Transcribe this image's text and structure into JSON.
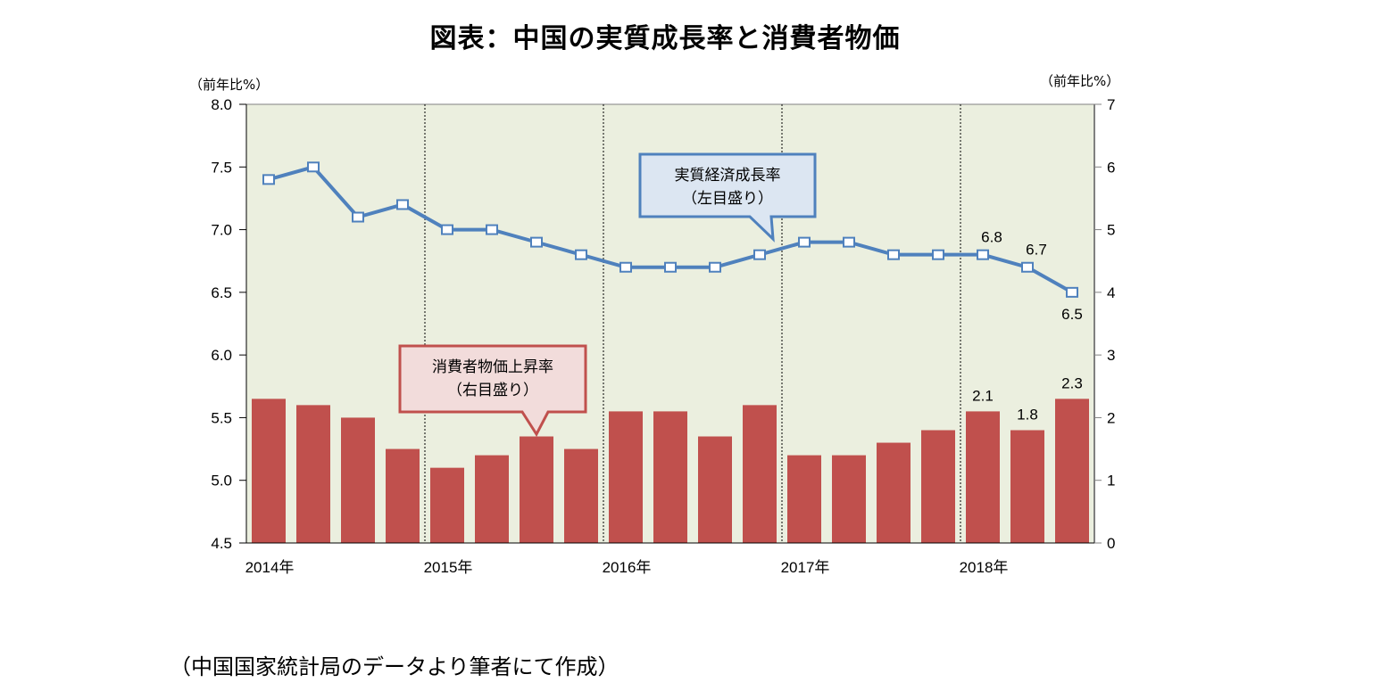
{
  "title": "図表：中国の実質成長率と消費者物価",
  "left_unit": "（前年比%）",
  "right_unit": "（前年比%）",
  "source_note": "（中国国家統計局のデータより筆者にて作成）",
  "callouts": {
    "gdp": {
      "line1": "実質経済成長率",
      "line2": "（左目盛り）"
    },
    "cpi": {
      "line1": "消費者物価上昇率",
      "line2": "（右目盛り）"
    }
  },
  "colors": {
    "plot_bg": "#ebefdf",
    "bar": "#c0504d",
    "line": "#4f81bd",
    "gdp_callout_bg": "#dce6f2",
    "cpi_callout_bg": "#f2dcdb"
  },
  "chart_data": {
    "type": "bar+line",
    "title": "図表：中国の実質成長率と消費者物価",
    "categories": [
      "2014Q1",
      "2014Q2",
      "2014Q3",
      "2014Q4",
      "2015Q1",
      "2015Q2",
      "2015Q3",
      "2015Q4",
      "2016Q1",
      "2016Q2",
      "2016Q3",
      "2016Q4",
      "2017Q1",
      "2017Q2",
      "2017Q3",
      "2017Q4",
      "2018Q1",
      "2018Q2",
      "2018Q3"
    ],
    "x_tick_labels": [
      "2014年",
      "2015年",
      "2016年",
      "2017年",
      "2018年"
    ],
    "series": [
      {
        "name": "実質経済成長率（左目盛り）",
        "type": "line",
        "axis": "left",
        "values": [
          7.4,
          7.5,
          7.1,
          7.2,
          7.0,
          7.0,
          6.9,
          6.8,
          6.7,
          6.7,
          6.7,
          6.8,
          6.9,
          6.9,
          6.8,
          6.8,
          6.8,
          6.7,
          6.5
        ],
        "labeled_points": {
          "2018Q1": "6.8",
          "2018Q2": "6.7",
          "2018Q3": "6.5"
        }
      },
      {
        "name": "消費者物価上昇率（右目盛り）",
        "type": "bar",
        "axis": "right",
        "values": [
          2.3,
          2.2,
          2.0,
          1.5,
          1.2,
          1.4,
          1.7,
          1.5,
          2.1,
          2.1,
          1.7,
          2.2,
          1.4,
          1.4,
          1.6,
          1.8,
          2.1,
          1.8,
          2.3
        ],
        "labeled_points": {
          "2018Q1": "2.1",
          "2018Q2": "1.8",
          "2018Q3": "2.3"
        }
      }
    ],
    "left_axis": {
      "label": "（前年比%）",
      "range": [
        4.5,
        8.0
      ],
      "ticks": [
        "8.0",
        "7.5",
        "7.0",
        "6.5",
        "6.0",
        "5.5",
        "5.0",
        "4.5"
      ]
    },
    "right_axis": {
      "label": "（前年比%）",
      "range": [
        0,
        7
      ],
      "ticks": [
        "7",
        "6",
        "5",
        "4",
        "3",
        "2",
        "1",
        "0"
      ]
    },
    "grid": "vertical dashed lines at year boundaries"
  }
}
